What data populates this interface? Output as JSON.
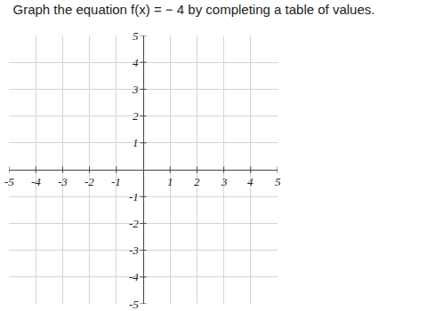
{
  "chart_data": {
    "type": "line",
    "title": "Graph the equation f(x) = − 4 by completing a table of values.",
    "series": [],
    "xlim": [
      -5,
      5
    ],
    "ylim": [
      -5,
      5
    ],
    "xticks": [
      -5,
      -4,
      -3,
      -2,
      -1,
      1,
      2,
      3,
      4,
      5
    ],
    "yticks": [
      -5,
      -4,
      -3,
      -2,
      -1,
      1,
      2,
      3,
      4,
      5
    ],
    "grid": true
  }
}
